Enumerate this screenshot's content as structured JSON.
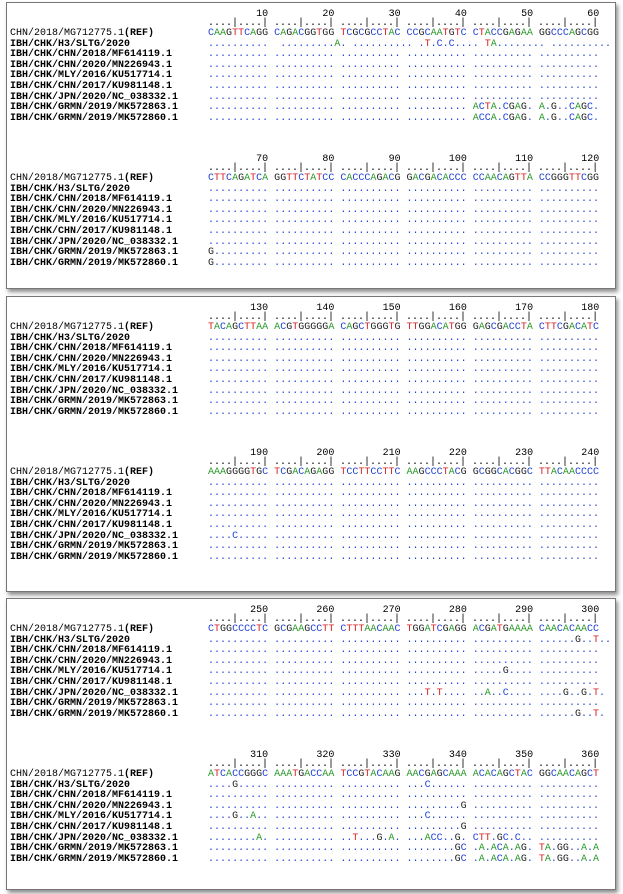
{
  "panels": [
    {
      "blocks": [
        {
          "positions": [
            "10",
            "20",
            "30",
            "40",
            "50",
            "60"
          ],
          "ruler": "....|....| ....|....| ....|....| ....|....| ....|....| ....|....|",
          "ref_label": "CHN/2018/MG712775.1",
          "ref_tag": "(REF)",
          "ref_seq": "CAAGTTCAGG CAGACGGTGG TCGCGCCTAC CCGCAATGTC CTACCGAGAA GGCCCAGCGG",
          "rows": [
            {
              "label": "IBH/CHK/H3/SLTG/2020",
              "seq": "..........  .........A. .......... .T.C.C.... TA........ .........."
            },
            {
              "label": "IBH/CHK/CHN/2018/MF614119.1",
              "seq": ".......... .......... .......... .......... .......... .........."
            },
            {
              "label": "IBH/CHK/CHN/2020/MN226943.1",
              "seq": ".......... .......... .......... .......... .......... .........."
            },
            {
              "label": "IBH/CHK/MLY/2016/KU517714.1",
              "seq": ".......... .......... .......... .......... .......... .........."
            },
            {
              "label": "IBH/CHK/CHN/2017/KU981148.1",
              "seq": ".......... .......... .......... .......... .......... .........."
            },
            {
              "label": "IBH/CHK/JPN/2020/NC_038332.1",
              "seq": ".......... .......... .......... .......... .......... .........."
            },
            {
              "label": "IBH/CHK/GRMN/2019/MK572863.1",
              "seq": ".......... .......... .......... .......... ACTA.CGAG. A.G..CAGC."
            },
            {
              "label": "IBH/CHK/GRMN/2019/MK572860.1",
              "seq": ".......... .......... .......... .......... ACCA.CGAG. A.G..CAGC."
            }
          ]
        },
        {
          "positions": [
            "70",
            "80",
            "90",
            "100",
            "110",
            "120"
          ],
          "ruler": "....|....| ....|....| ....|....| ....|....| ....|....| ....|....|",
          "ref_label": "CHN/2018/MG712775.1",
          "ref_tag": "(REF)",
          "ref_seq": "CTTCAGATCA GGTTCTATCC CACCCAGACG GACGACACCC CCAACAGTTA CCGGGTTCGG",
          "rows": [
            {
              "label": "IBH/CHK/H3/SLTG/2020",
              "seq": ".......... .......... .......... .......... .......... .........."
            },
            {
              "label": "IBH/CHK/CHN/2018/MF614119.1",
              "seq": ".......... .......... .......... .......... .......... .........."
            },
            {
              "label": "IBH/CHK/CHN/2020/MN226943.1",
              "seq": ".......... .......... .......... .......... .......... .........."
            },
            {
              "label": "IBH/CHK/MLY/2016/KU517714.1",
              "seq": ".......... .......... .......... .......... .......... .........."
            },
            {
              "label": "IBH/CHK/CHN/2017/KU981148.1",
              "seq": ".......... .......... .......... .......... .......... .........."
            },
            {
              "label": "IBH/CHK/JPN/2020/NC_038332.1",
              "seq": ".......... .......... .......... .......... .......... .........."
            },
            {
              "label": "IBH/CHK/GRMN/2019/MK572863.1",
              "seq": "G......... .......... .......... .......... .......... .........."
            },
            {
              "label": "IBH/CHK/GRMN/2019/MK572860.1",
              "seq": "G......... .......... .......... .......... .......... .........."
            }
          ]
        }
      ]
    },
    {
      "blocks": [
        {
          "positions": [
            "130",
            "140",
            "150",
            "160",
            "170",
            "180"
          ],
          "ruler": "....|....| ....|....| ....|....| ....|....| ....|....| ....|....|",
          "ref_label": "CHN/2018/MG712775.1",
          "ref_tag": "(REF)",
          "ref_seq": "TACAGCTTAA ACGTGGGGGA CAGCTGGGTG TTGGACATGG GAGCGACCTA CTTCGACATC",
          "rows": [
            {
              "label": "IBH/CHK/H3/SLTG/2020",
              "seq": ".......... .......... .......... .......... .......... .........."
            },
            {
              "label": "IBH/CHK/CHN/2018/MF614119.1",
              "seq": ".......... .......... .......... .......... .......... .........."
            },
            {
              "label": "IBH/CHK/CHN/2020/MN226943.1",
              "seq": ".......... .......... .......... .......... .......... .........."
            },
            {
              "label": "IBH/CHK/MLY/2016/KU517714.1",
              "seq": ".......... .......... .......... .......... .......... .........."
            },
            {
              "label": "IBH/CHK/CHN/2017/KU981148.1",
              "seq": ".......... .......... .......... .......... .......... .........."
            },
            {
              "label": "IBH/CHK/JPN/2020/NC_038332.1",
              "seq": ".......... .......... .......... .......... .......... .........."
            },
            {
              "label": "IBH/CHK/GRMN/2019/MK572863.1",
              "seq": ".......... .......... .......... .......... .......... .........."
            },
            {
              "label": "IBH/CHK/GRMN/2019/MK572860.1",
              "seq": ".......... .......... .......... .......... .......... .........."
            }
          ]
        },
        {
          "positions": [
            "190",
            "200",
            "210",
            "220",
            "230",
            "240"
          ],
          "ruler": "....|....| ....|....| ....|....| ....|....| ....|....| ....|....|",
          "ref_label": "CHN/2018/MG712775.1",
          "ref_tag": "(REF)",
          "ref_seq": "AAAGGGGTGC TCGACAGAGG TCCTTCCTTC AAGCCCTACG GCGGCACGGC TTACAACCCC",
          "rows": [
            {
              "label": "IBH/CHK/H3/SLTG/2020",
              "seq": ".......... .......... .......... .......... .......... .........."
            },
            {
              "label": "IBH/CHK/CHN/2018/MF614119.1",
              "seq": ".......... .......... .......... .......... .......... .........."
            },
            {
              "label": "IBH/CHK/CHN/2020/MN226943.1",
              "seq": ".......... .......... .......... .......... .......... .........."
            },
            {
              "label": "IBH/CHK/MLY/2016/KU517714.1",
              "seq": ".......... .......... .......... .......... .......... .........."
            },
            {
              "label": "IBH/CHK/CHN/2017/KU981148.1",
              "seq": ".......... .......... .......... .......... .......... .........."
            },
            {
              "label": "IBH/CHK/JPN/2020/NC_038332.1",
              "seq": "....C..... .......... .......... .......... .......... .........."
            },
            {
              "label": "IBH/CHK/GRMN/2019/MK572863.1",
              "seq": ".......... .......... .......... .......... .......... .........."
            },
            {
              "label": "IBH/CHK/GRMN/2019/MK572860.1",
              "seq": ".......... .......... .......... .......... .......... .........."
            }
          ]
        }
      ]
    },
    {
      "blocks": [
        {
          "positions": [
            "250",
            "260",
            "270",
            "280",
            "290",
            "300"
          ],
          "ruler": "....|....| ....|....| ....|....| ....|....| ....|....| ....|....|",
          "ref_label": "CHN/2018/MG712775.1",
          "ref_tag": "(REF)",
          "ref_seq": "CTGGCCCCTC GCGAAGCCTT CTTTAACAAC TGGATCGAGG ACGATGAAAA CAACACAACC",
          "rows": [
            {
              "label": "IBH/CHK/H3/SLTG/2020",
              "seq": ".......... .......... .......... .......... .......... ......G..T.."
            },
            {
              "label": "IBH/CHK/CHN/2018/MF614119.1",
              "seq": ".......... .......... .......... .......... .......... .........."
            },
            {
              "label": "IBH/CHK/CHN/2020/MN226943.1",
              "seq": ".......... .......... .......... .......... .......... .........."
            },
            {
              "label": "IBH/CHK/MLY/2016/KU517714.1",
              "seq": ".......... .......... .......... .......... .....G.... .........."
            },
            {
              "label": "IBH/CHK/CHN/2017/KU981148.1",
              "seq": ".......... .......... .......... .......... .......... .........."
            },
            {
              "label": "IBH/CHK/JPN/2020/NC_038332.1",
              "seq": ".......... .......... .......... ...T.T.... ..A..C.... ....G..G.T."
            },
            {
              "label": "IBH/CHK/GRMN/2019/MK572863.1",
              "seq": ".......... .......... .......... .......... .......... .........."
            },
            {
              "label": "IBH/CHK/GRMN/2019/MK572860.1",
              "seq": ".......... .......... .......... .......... .......... ......G..T."
            }
          ]
        },
        {
          "positions": [
            "310",
            "320",
            "330",
            "340",
            "350",
            "360"
          ],
          "ruler": "....|....| ....|....| ....|....| ....|....| ....|....| ....|....|",
          "ref_label": "CHN/2018/MG712775.1",
          "ref_tag": "(REF)",
          "ref_seq": "ATCACCGGGC AAATGACCAA TCCGTACAAG AACGAGCAAA ACACAGCTAC GGCAACAGCT",
          "rows": [
            {
              "label": "IBH/CHK/H3/SLTG/2020",
              "seq": "....G..... .......... .......... ...C...... .......... .........."
            },
            {
              "label": "IBH/CHK/CHN/2018/MF614119.1",
              "seq": ".......... .......... .......... .......... .......... .........."
            },
            {
              "label": "IBH/CHK/CHN/2020/MN226943.1",
              "seq": ".......... .......... .......... .........G .......... .........."
            },
            {
              "label": "IBH/CHK/MLY/2016/KU517714.1",
              "seq": "....G..A.. .......... .......... ...C...... .......... .........."
            },
            {
              "label": "IBH/CHK/CHN/2017/KU981148.1",
              "seq": ".......... .......... .......... .........G .......... .........."
            },
            {
              "label": "IBH/CHK/JPN/2020/NC_038332.1",
              "seq": "........A. .......... ..T...G.A. ...ACC..G. CTT.GC.C.. .........."
            },
            {
              "label": "IBH/CHK/GRMN/2019/MK572863.1",
              "seq": ".......... .......... .......... ........GC .A.ACA.AG. TA.GG..A.A"
            },
            {
              "label": "IBH/CHK/GRMN/2019/MK572860.1",
              "seq": ".......... .......... .......... ........GC .A.ACA.AG. TA.GG..A.A"
            }
          ]
        }
      ]
    }
  ]
}
